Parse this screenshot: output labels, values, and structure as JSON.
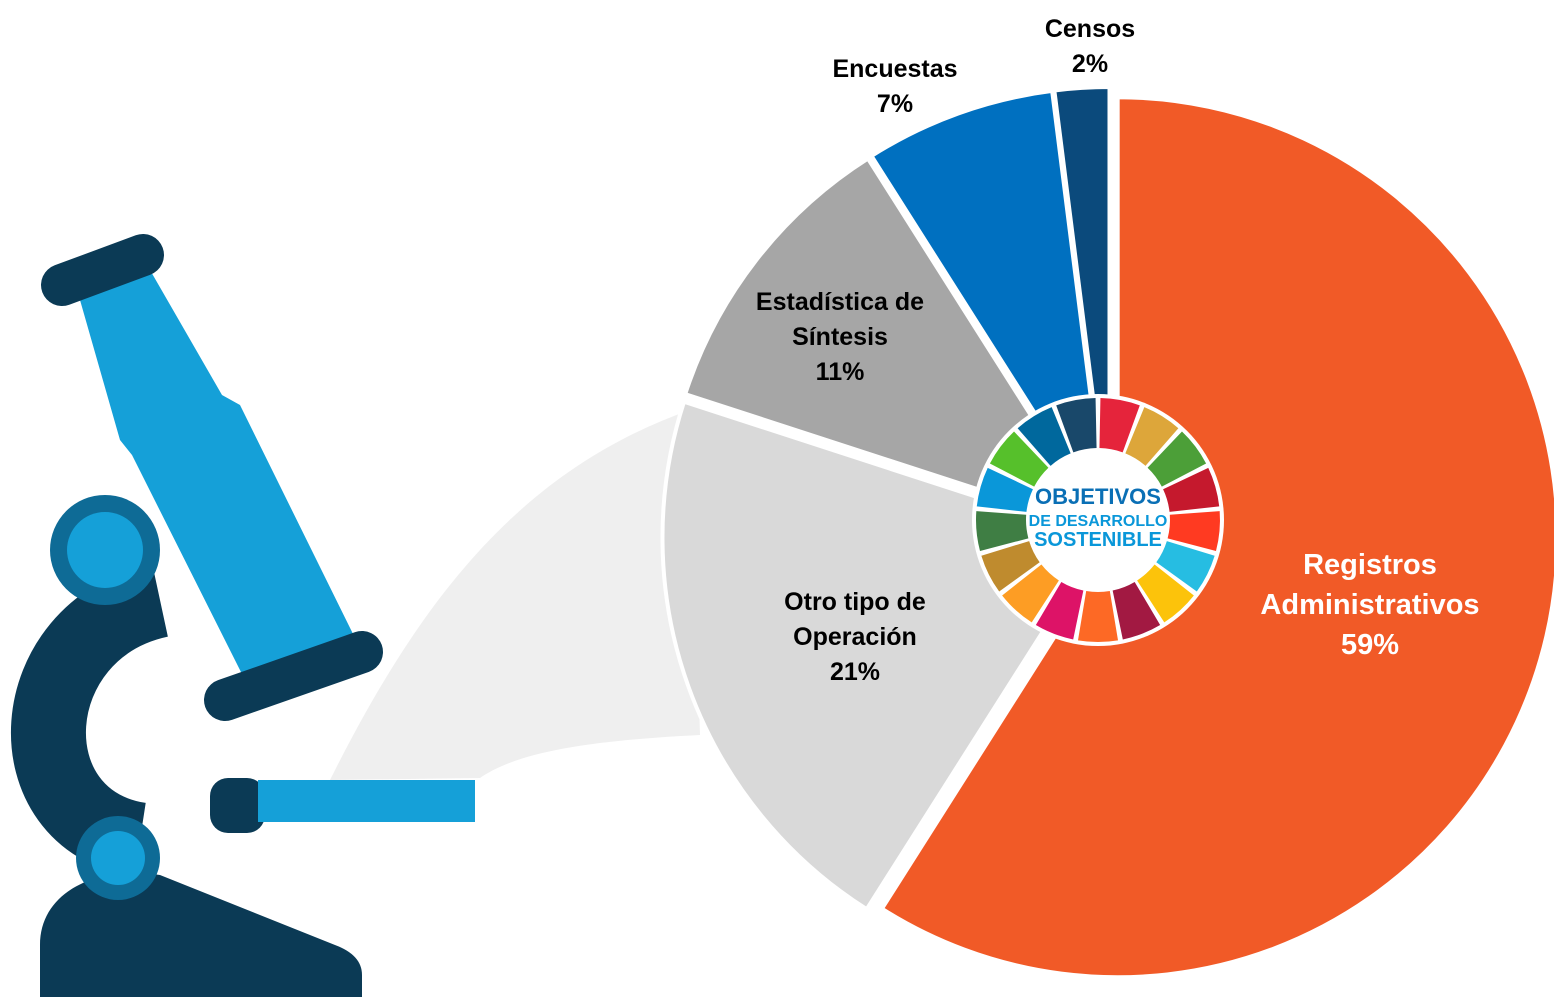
{
  "chart_data": {
    "type": "pie",
    "categories": [
      "Registros Administrativos",
      "Otro tipo de Operación",
      "Estadística de Síntesis",
      "Encuestas",
      "Censos"
    ],
    "values": [
      59,
      21,
      11,
      7,
      2
    ],
    "value_labels": [
      "59%",
      "21%",
      "11%",
      "7%",
      "2%"
    ],
    "colors": [
      "#f15a27",
      "#d9d9d9",
      "#a6a6a6",
      "#0070c0",
      "#0b4a7c"
    ],
    "annotations": [
      "OBJETIVOS",
      "DE DESARROLLO",
      "SOSTENIBLE"
    ]
  }
}
